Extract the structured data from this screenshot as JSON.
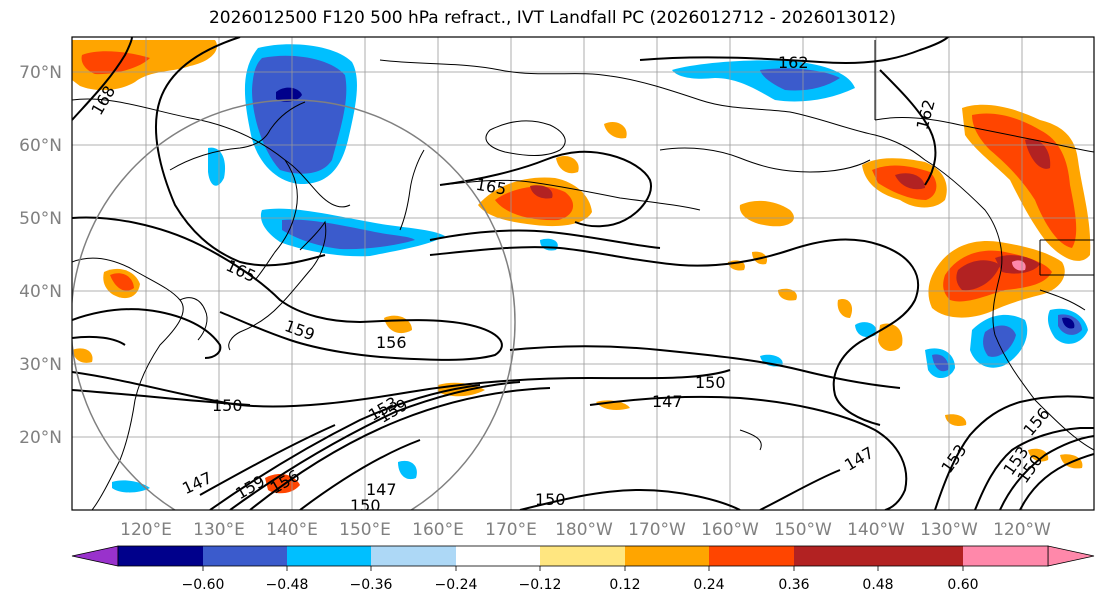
{
  "title": "2026012500 F120 500 hPa refract., IVT Landfall PC (2026012712 - 2026013012)",
  "lat_labels": [
    "70°N",
    "60°N",
    "50°N",
    "40°N",
    "30°N",
    "20°N"
  ],
  "lon_labels": [
    "120°E",
    "130°E",
    "140°E",
    "150°E",
    "160°E",
    "170°E",
    "180°W",
    "170°W",
    "160°W",
    "150°W",
    "140°W",
    "130°W",
    "120°W"
  ],
  "contour_labels": [
    "168",
    "162",
    "162",
    "165",
    "165",
    "159",
    "156",
    "150",
    "150",
    "147",
    "153",
    "159",
    "147",
    "159",
    "147",
    "150",
    "150",
    "147",
    "153",
    "156",
    "153",
    "150",
    "156"
  ],
  "colorbar": {
    "colors": [
      "#9932cc",
      "#00008b",
      "#3b5bcc",
      "#00bfff",
      "#add8f6",
      "#ffffff",
      "#ffe680",
      "#ffa500",
      "#ff4500",
      "#b22222",
      "#ff88aa"
    ],
    "tick_labels": [
      "−0.60",
      "−0.48",
      "−0.36",
      "−0.24",
      "−0.12",
      "0.12",
      "0.24",
      "0.36",
      "0.48",
      "0.60"
    ]
  }
}
